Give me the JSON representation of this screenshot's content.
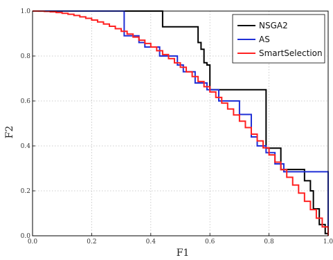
{
  "chart_data": {
    "type": "line",
    "xlabel": "F1",
    "ylabel": "F2",
    "xlim": [
      0,
      1
    ],
    "ylim": [
      0,
      1
    ],
    "xticks": [
      "0.0",
      "0.2",
      "0.4",
      "0.6",
      "0.8",
      "1.0"
    ],
    "yticks": [
      "0.0",
      "0.2",
      "0.4",
      "0.6",
      "0.8",
      "1.0"
    ],
    "grid": true,
    "legend_position": "top-right",
    "series": [
      {
        "name": "NSGA2",
        "color": "#000000",
        "style": "step",
        "points": [
          [
            0.0,
            1.0
          ],
          [
            0.44,
            1.0
          ],
          [
            0.44,
            0.93
          ],
          [
            0.56,
            0.93
          ],
          [
            0.56,
            0.86
          ],
          [
            0.57,
            0.86
          ],
          [
            0.57,
            0.83
          ],
          [
            0.58,
            0.83
          ],
          [
            0.58,
            0.77
          ],
          [
            0.59,
            0.77
          ],
          [
            0.59,
            0.76
          ],
          [
            0.6,
            0.76
          ],
          [
            0.6,
            0.65
          ],
          [
            0.79,
            0.65
          ],
          [
            0.79,
            0.39
          ],
          [
            0.84,
            0.39
          ],
          [
            0.84,
            0.295
          ],
          [
            0.92,
            0.295
          ],
          [
            0.92,
            0.245
          ],
          [
            0.94,
            0.245
          ],
          [
            0.94,
            0.2
          ],
          [
            0.95,
            0.2
          ],
          [
            0.95,
            0.12
          ],
          [
            0.97,
            0.12
          ],
          [
            0.97,
            0.05
          ],
          [
            0.99,
            0.05
          ],
          [
            0.99,
            0.01
          ],
          [
            1.0,
            0.01
          ]
        ]
      },
      {
        "name": "AS",
        "color": "#1f2fd6",
        "style": "step",
        "points": [
          [
            0.0,
            1.0
          ],
          [
            0.31,
            1.0
          ],
          [
            0.31,
            0.89
          ],
          [
            0.36,
            0.89
          ],
          [
            0.36,
            0.86
          ],
          [
            0.38,
            0.86
          ],
          [
            0.38,
            0.84
          ],
          [
            0.43,
            0.84
          ],
          [
            0.43,
            0.8
          ],
          [
            0.49,
            0.8
          ],
          [
            0.49,
            0.76
          ],
          [
            0.51,
            0.76
          ],
          [
            0.51,
            0.73
          ],
          [
            0.55,
            0.73
          ],
          [
            0.55,
            0.68
          ],
          [
            0.59,
            0.68
          ],
          [
            0.59,
            0.65
          ],
          [
            0.63,
            0.65
          ],
          [
            0.63,
            0.6
          ],
          [
            0.7,
            0.6
          ],
          [
            0.7,
            0.54
          ],
          [
            0.74,
            0.54
          ],
          [
            0.74,
            0.44
          ],
          [
            0.76,
            0.44
          ],
          [
            0.76,
            0.4
          ],
          [
            0.79,
            0.4
          ],
          [
            0.79,
            0.37
          ],
          [
            0.82,
            0.37
          ],
          [
            0.82,
            0.32
          ],
          [
            0.85,
            0.32
          ],
          [
            0.85,
            0.285
          ],
          [
            1.0,
            0.285
          ],
          [
            1.0,
            0.0
          ]
        ]
      },
      {
        "name": "SmartSelection",
        "color": "#ff2020",
        "style": "step",
        "curve": "y = 1 - x^2",
        "x_start": 0.0,
        "x_end": 1.0,
        "x_step": 0.02
      }
    ]
  }
}
